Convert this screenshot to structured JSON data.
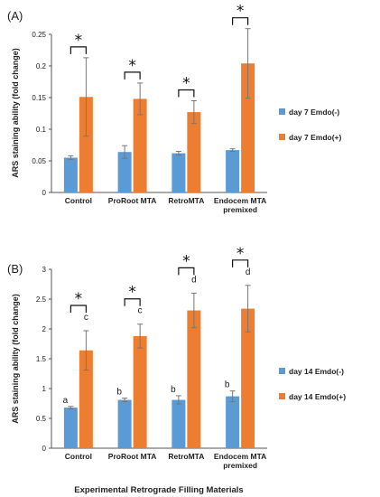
{
  "colors": {
    "series1": "#5b9bd5",
    "series2": "#ed7d31",
    "axis": "#555555",
    "error": "#777777"
  },
  "xlabel_shared": "Experimental Retrograde Filling Materials",
  "chart_data": [
    {
      "type": "bar",
      "panel": "(A)",
      "title": "",
      "ylabel": "ARS staining ability (fold change)",
      "xlabel": "",
      "ylim": [
        0,
        0.25
      ],
      "yticks": [
        "0",
        "0.05",
        "0.1",
        "0.15",
        "0.2",
        "0.25"
      ],
      "categories": [
        "Control",
        "ProRoot MTA",
        "RetroMTA",
        "Endocem MTA premixed"
      ],
      "category_lines": [
        [
          "Control"
        ],
        [
          "ProRoot MTA"
        ],
        [
          "RetroMTA"
        ],
        [
          "Endocem MTA",
          "premixed"
        ]
      ],
      "series": [
        {
          "name": "day 7 Emdo(-)",
          "values": [
            0.055,
            0.064,
            0.062,
            0.067
          ],
          "errors": [
            0.003,
            0.01,
            0.003,
            0.002
          ]
        },
        {
          "name": "day 7 Emdo(+)",
          "values": [
            0.151,
            0.148,
            0.127,
            0.204
          ],
          "errors": [
            0.062,
            0.025,
            0.018,
            0.055
          ]
        }
      ],
      "significance": [
        "*",
        "*",
        "*",
        "*"
      ],
      "letters_low": [
        "",
        "",
        "",
        ""
      ],
      "letters_high": [
        "",
        "",
        "",
        ""
      ],
      "legend_position": "right"
    },
    {
      "type": "bar",
      "panel": "(B)",
      "title": "",
      "ylabel": "ARS staining ability (fold change)",
      "xlabel": "Experimental Retrograde Filling Materials",
      "ylim": [
        0,
        3
      ],
      "yticks": [
        "0",
        "0.5",
        "1",
        "1.5",
        "2",
        "2.5",
        "3"
      ],
      "categories": [
        "Control",
        "ProRoot MTA",
        "RetroMTA",
        "Endocem MTA premixed"
      ],
      "category_lines": [
        [
          "Control"
        ],
        [
          "ProRoot MTA"
        ],
        [
          "RetroMTA"
        ],
        [
          "Endocem MTA",
          "premixed"
        ]
      ],
      "series": [
        {
          "name": "day 14 Emdo(-)",
          "values": [
            0.68,
            0.81,
            0.81,
            0.87
          ],
          "errors": [
            0.02,
            0.03,
            0.07,
            0.09
          ]
        },
        {
          "name": "day 14 Emdo(+)",
          "values": [
            1.64,
            1.88,
            2.31,
            2.34
          ],
          "errors": [
            0.33,
            0.2,
            0.29,
            0.39
          ]
        }
      ],
      "significance": [
        "*",
        "*",
        "*",
        "*"
      ],
      "letters_low": [
        "a",
        "b",
        "b",
        "b"
      ],
      "letters_high": [
        "c",
        "c",
        "d",
        "d"
      ],
      "legend_position": "right"
    }
  ]
}
